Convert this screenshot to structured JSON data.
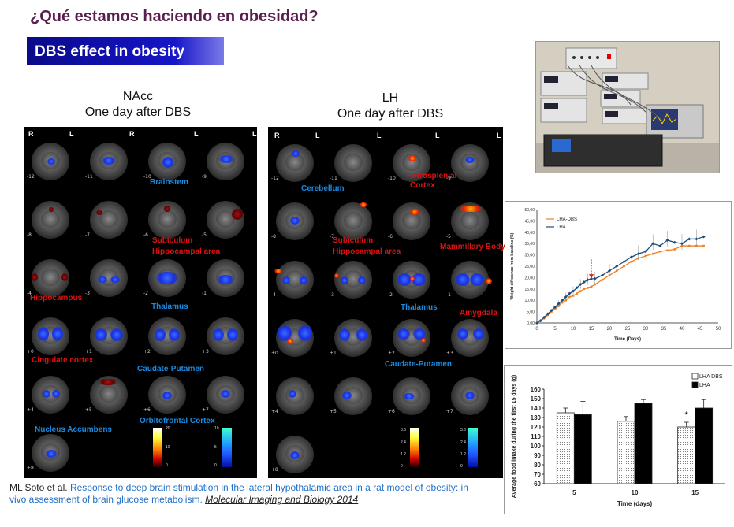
{
  "title": "¿Qué estamos haciendo en obesidad?",
  "subtitle": "DBS effect in obesity",
  "nacc": {
    "heading_line1": "NAcc",
    "heading_line2": "One day after DBS",
    "r": "R",
    "l": "L",
    "slice_numbers": [
      "-12",
      "-11",
      "-10",
      "-9",
      "-8",
      "-7",
      "-6",
      "-5",
      "-4",
      "-3",
      "-2",
      "-1",
      "+0",
      "+1",
      "+2",
      "+3",
      "+4",
      "+5",
      "+6",
      "+7",
      "+8"
    ],
    "labels": {
      "brainstem": "Brainstem",
      "subiculum": "Subiculum",
      "hippocampal": "Hippocampal area",
      "hippocampus": "Hippocampus",
      "thalamus": "Thalamus",
      "cingulate": "Cingulate cortex",
      "caudate": "Caudate-Putamen",
      "orbitofrontal": "Orbitofrontal  Cortex",
      "nucleus": "Nucleus Accumbens"
    },
    "hot_bar": [
      "20",
      "10",
      "0"
    ],
    "cold_bar": [
      "10",
      "5",
      "0"
    ]
  },
  "lh": {
    "heading_line1": "LH",
    "heading_line2": "One day after DBS",
    "r": "R",
    "l": "L",
    "slice_numbers": [
      "-12",
      "-11",
      "-10",
      "-9",
      "-8",
      "-7",
      "-6",
      "-5",
      "-4",
      "-3",
      "-2",
      "-1",
      "+0",
      "+1",
      "+2",
      "+3",
      "+4",
      "+5",
      "+6",
      "+7",
      "+8"
    ],
    "labels": {
      "cerebellum": "Cerebellum",
      "retrosplenial1": "Retrosplenial",
      "retrosplenial2": "Cortex",
      "subiculum": "Subiculum",
      "hippocampal": "Hippocampal area",
      "mammillary": "Mammillary Body",
      "thalamus": "Thalamus",
      "amygdala": "Amygdala",
      "caudate": "Caudate-Putamen"
    },
    "hot_bar": [
      "3.6",
      "2.4",
      "1.2",
      "0"
    ],
    "cold_bar": [
      "3.6",
      "2.4",
      "1.2",
      "0"
    ]
  },
  "photo": {
    "description_icon": "lab-equipment-photo"
  },
  "citation": {
    "author": "ML Soto et al. ",
    "title": "Response to deep brain stimulation in the lateral hypothalamic area in a rat model of obesity: in vivo assessment of brain glucose metabolism. ",
    "journal": "Molecular Imaging and Biology 2014"
  },
  "chart_data": [
    {
      "type": "line",
      "title": "",
      "xlabel": "Time (Days)",
      "ylabel": "Weight difference from baseline (%)",
      "xlim": [
        0,
        50
      ],
      "ylim": [
        0,
        50
      ],
      "x_ticks": [
        "0",
        "5",
        "10",
        "15",
        "20",
        "25",
        "30",
        "35",
        "40",
        "45",
        "50"
      ],
      "y_ticks": [
        "0,00",
        "5,00",
        "10,00",
        "15,00",
        "20,00",
        "25,00",
        "30,00",
        "35,00",
        "40,00",
        "45,00",
        "50,00"
      ],
      "legend_position": "top-left",
      "series": [
        {
          "name": "LHA-DBS",
          "color": "#f08020",
          "x": [
            0,
            1,
            2,
            3,
            4,
            5,
            6,
            7,
            8,
            9,
            10,
            11,
            12,
            13,
            14,
            15,
            16,
            18,
            20,
            22,
            24,
            26,
            28,
            30,
            32,
            34,
            36,
            38,
            40,
            42,
            44,
            46
          ],
          "y": [
            0,
            1,
            2,
            3.5,
            5,
            6,
            7.5,
            9,
            10,
            11.5,
            12,
            13,
            14,
            15,
            15.5,
            16,
            17,
            19,
            21,
            23,
            25,
            27,
            28.5,
            29.5,
            30.5,
            31.5,
            32,
            32.5,
            34,
            34,
            34,
            34
          ]
        },
        {
          "name": "LHA",
          "color": "#1f4e79",
          "x": [
            0,
            1,
            2,
            3,
            4,
            5,
            6,
            7,
            8,
            9,
            10,
            11,
            12,
            13,
            14,
            15,
            16,
            18,
            20,
            22,
            24,
            26,
            28,
            30,
            32,
            34,
            36,
            38,
            40,
            42,
            44,
            46
          ],
          "y": [
            0,
            1,
            2.5,
            4,
            5.5,
            7,
            8.5,
            10,
            11.5,
            13,
            14,
            15.5,
            17,
            18,
            19,
            19.5,
            19.5,
            21,
            23,
            25,
            27,
            29,
            30.5,
            31.5,
            35,
            34,
            36.5,
            35.5,
            35,
            37,
            37,
            38
          ]
        }
      ],
      "annotation": "arrow at day 15"
    },
    {
      "type": "bar",
      "title": "",
      "xlabel": "Time (days)",
      "ylabel": "Average food intake during the first 15 days (g)",
      "ylim": [
        60,
        160
      ],
      "y_ticks": [
        "60",
        "70",
        "80",
        "90",
        "100",
        "110",
        "120",
        "130",
        "140",
        "150",
        "160"
      ],
      "categories": [
        "5",
        "10",
        "15"
      ],
      "legend_position": "top-right",
      "series": [
        {
          "name": "LHA DBS",
          "values": [
            135,
            126,
            120
          ],
          "errors": [
            5,
            5,
            5
          ],
          "color": "#ffffff"
        },
        {
          "name": "LHA",
          "values": [
            133,
            145,
            140
          ],
          "errors": [
            14,
            4,
            9
          ],
          "color": "#000000"
        }
      ],
      "annotation": "*"
    }
  ]
}
